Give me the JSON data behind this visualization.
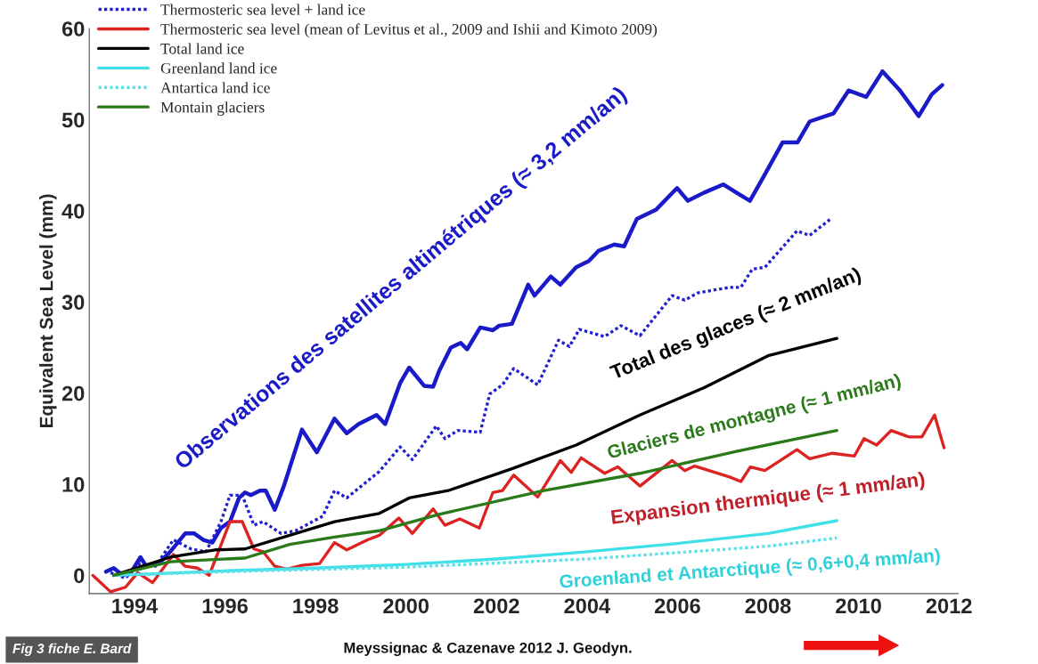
{
  "chart_data": {
    "type": "line",
    "ylabel": "Equivalent Sea Level (mm)",
    "xlim": [
      1993,
      2012.2
    ],
    "xticks": [
      1994,
      1996,
      1998,
      2000,
      2002,
      2004,
      2006,
      2008,
      2010,
      2012
    ],
    "ylim": [
      -2,
      60
    ],
    "yticks": [
      0,
      10,
      20,
      30,
      40,
      50,
      60
    ],
    "grid": false,
    "legend": "top left",
    "series": [
      {
        "color": "#1a1ac8",
        "line_style": "solid",
        "x": [
          1993.37,
          1993.54,
          1993.74,
          1993.93,
          1994.13,
          1994.26,
          1994.53,
          1994.79,
          1995.12,
          1995.32,
          1995.52,
          1995.72,
          1995.91,
          1996.11,
          1996.31,
          1996.44,
          1996.57,
          1996.77,
          1996.9,
          1997.1,
          1997.3,
          1997.7,
          1998.03,
          1998.42,
          1998.69,
          1998.95,
          1999.35,
          1999.54,
          1999.87,
          2000.07,
          2000.4,
          2000.6,
          2000.73,
          2000.99,
          2001.21,
          2001.35,
          2001.64,
          2001.92,
          2002.06,
          2002.34,
          2002.7,
          2002.84,
          2003.2,
          2003.41,
          2003.76,
          2004.04,
          2004.25,
          2004.6,
          2004.82,
          2005.1,
          2005.52,
          2005.99,
          2006.23,
          2006.59,
          2007.01,
          2007.3,
          2007.6,
          2007.92,
          2008.32,
          2008.65,
          2008.92,
          2009.45,
          2009.78,
          2010.17,
          2010.53,
          2010.9,
          2011.33,
          2011.62,
          2011.85
        ],
        "values": [
          0.4,
          0.8,
          0,
          0.4,
          2.0,
          1.0,
          1.3,
          2.6,
          4.6,
          4.6,
          3.9,
          3.6,
          5.2,
          5.9,
          8.5,
          9.1,
          8.8,
          9.3,
          9.3,
          7.2,
          9.8,
          16.0,
          13.5,
          17.2,
          15.6,
          16.6,
          17.6,
          16.6,
          21.1,
          22.8,
          20.8,
          20.7,
          22.4,
          25.0,
          25.5,
          24.8,
          27.2,
          26.9,
          27.4,
          27.6,
          31.9,
          30.7,
          32.8,
          31.9,
          33.8,
          34.5,
          35.6,
          36.3,
          36.1,
          39.1,
          40.1,
          42.5,
          41.1,
          42.0,
          42.9,
          42.0,
          41.1,
          43.9,
          47.5,
          47.5,
          49.8,
          50.7,
          53.2,
          52.5,
          55.3,
          53.3,
          50.4,
          52.8,
          53.8
        ]
      },
      {
        "name": "Thermosteric sea level + land ice",
        "color": "#2020d0",
        "line_style": "dotted",
        "x": [
          1993.47,
          1993.8,
          1994.13,
          1994.46,
          1994.86,
          1995.25,
          1995.58,
          1995.91,
          1996.11,
          1996.38,
          1996.64,
          1996.84,
          1997.24,
          1997.56,
          1998.16,
          1998.42,
          1998.69,
          1999.41,
          1999.87,
          2000.14,
          2000.67,
          2000.86,
          2001.14,
          2001.64,
          2001.85,
          2002.13,
          2002.38,
          2002.91,
          2003.37,
          2003.61,
          2003.83,
          2004.39,
          2004.75,
          2005.17,
          2005.88,
          2006.16,
          2006.45,
          2007.15,
          2007.4,
          2007.65,
          2007.93,
          2008.64,
          2008.92,
          2009.38
        ],
        "values": [
          0.3,
          -0.3,
          1.3,
          1.0,
          3.9,
          2.9,
          2.6,
          5.9,
          8.8,
          8.8,
          5.5,
          5.9,
          4.6,
          4.9,
          6.5,
          9.3,
          8.5,
          11.4,
          14.1,
          12.7,
          16.4,
          15.0,
          15.9,
          15.7,
          19.9,
          20.9,
          22.7,
          20.9,
          25.8,
          25.1,
          27.0,
          26.2,
          27.4,
          26.3,
          30.7,
          30.2,
          31.0,
          31.6,
          31.6,
          33.6,
          33.8,
          37.8,
          37.3,
          39.1
        ]
      },
      {
        "name": "Thermosteric sea level (mean of Levitus et al., 2009 and Ishii and Kimoto 2009)",
        "color": "#dd2222",
        "line_style": "solid",
        "x": [
          1993.08,
          1993.47,
          1993.8,
          1994.07,
          1994.4,
          1994.86,
          1995.12,
          1995.39,
          1995.65,
          1996.11,
          1996.38,
          1996.64,
          1996.84,
          1997.1,
          1997.37,
          1997.7,
          1998.09,
          1998.42,
          1998.69,
          1999.15,
          1999.41,
          1999.84,
          2000.14,
          2000.6,
          2000.86,
          2001.19,
          2001.62,
          2001.92,
          2002.13,
          2002.38,
          2002.91,
          2003.41,
          2003.65,
          2003.87,
          2004.39,
          2004.68,
          2005.17,
          2005.88,
          2006.16,
          2006.38,
          2007.15,
          2007.4,
          2007.61,
          2007.93,
          2008.64,
          2008.92,
          2009.42,
          2009.91,
          2010.12,
          2010.4,
          2010.72,
          2011.11,
          2011.4,
          2011.68,
          2011.89
        ],
        "values": [
          0,
          -1.8,
          -1.3,
          0.3,
          -0.8,
          2.3,
          1.0,
          0.8,
          0,
          5.9,
          5.9,
          2.9,
          2.6,
          1.0,
          0.7,
          1.1,
          1.3,
          3.6,
          2.8,
          3.9,
          4.4,
          6.3,
          4.6,
          7.3,
          5.5,
          6.2,
          5.2,
          9.1,
          9.3,
          11.0,
          8.6,
          12.6,
          11.3,
          12.9,
          11.2,
          11.9,
          9.8,
          12.6,
          11.5,
          12.0,
          10.8,
          10.3,
          11.9,
          11.5,
          13.8,
          12.8,
          13.4,
          13.1,
          15.0,
          14.3,
          15.9,
          15.2,
          15.2,
          17.6,
          14.0
        ]
      },
      {
        "name": "Total land ice",
        "color": "#000000",
        "line_style": "solid",
        "x": [
          1993.54,
          1994.79,
          1995.78,
          1996.44,
          1997.43,
          1998.42,
          1999.41,
          2000.07,
          2000.93,
          2002.34,
          2003.76,
          2005.17,
          2006.59,
          2008.0,
          2009.52
        ],
        "values": [
          0,
          2.0,
          2.8,
          2.9,
          4.4,
          5.9,
          6.8,
          8.5,
          9.3,
          11.7,
          14.3,
          17.6,
          20.6,
          24.1,
          26.0
        ]
      },
      {
        "name": "Greenland land ice",
        "color": "#40e0e8",
        "line_style": "solid",
        "x": [
          1993.54,
          1996,
          1998,
          2000,
          2002,
          2004,
          2006,
          2008,
          2009.52
        ],
        "values": [
          0,
          0.5,
          0.8,
          1.2,
          1.8,
          2.6,
          3.5,
          4.6,
          6.0
        ]
      },
      {
        "name": "Antartica land ice",
        "color": "#60e0e8",
        "line_style": "dotted",
        "x": [
          1993.54,
          1996,
          2000,
          2004,
          2008,
          2009.52
        ],
        "values": [
          0,
          0.4,
          0.9,
          1.8,
          3.2,
          4.1
        ]
      },
      {
        "name": "Montain glaciers",
        "color": "#2a7a1a",
        "line_style": "solid",
        "x": [
          1993.54,
          1994.79,
          1996.44,
          1997.43,
          1998.42,
          1999.41,
          2000.73,
          2003.05,
          2005.17,
          2007.3,
          2009.52
        ],
        "values": [
          0,
          1.5,
          1.9,
          3.4,
          4.2,
          4.9,
          6.7,
          9.3,
          11.2,
          13.6,
          15.9
        ]
      }
    ],
    "annotations": [
      "Observations des satellites altimétriques (≈ 3,2 mm/an)",
      "Total des glaces (≈ 2 mm/an)",
      "Glaciers de montagne (≈ 1 mm/an)",
      "Expansion thermique (≈ 1 mm/an)",
      "Groenland et Antarctique (≈ 0,6+0,4 mm/an)",
      "Meyssignac & Cazenave 2012 J. Geodyn.",
      "Fig 3 fiche E. Bard"
    ]
  }
}
